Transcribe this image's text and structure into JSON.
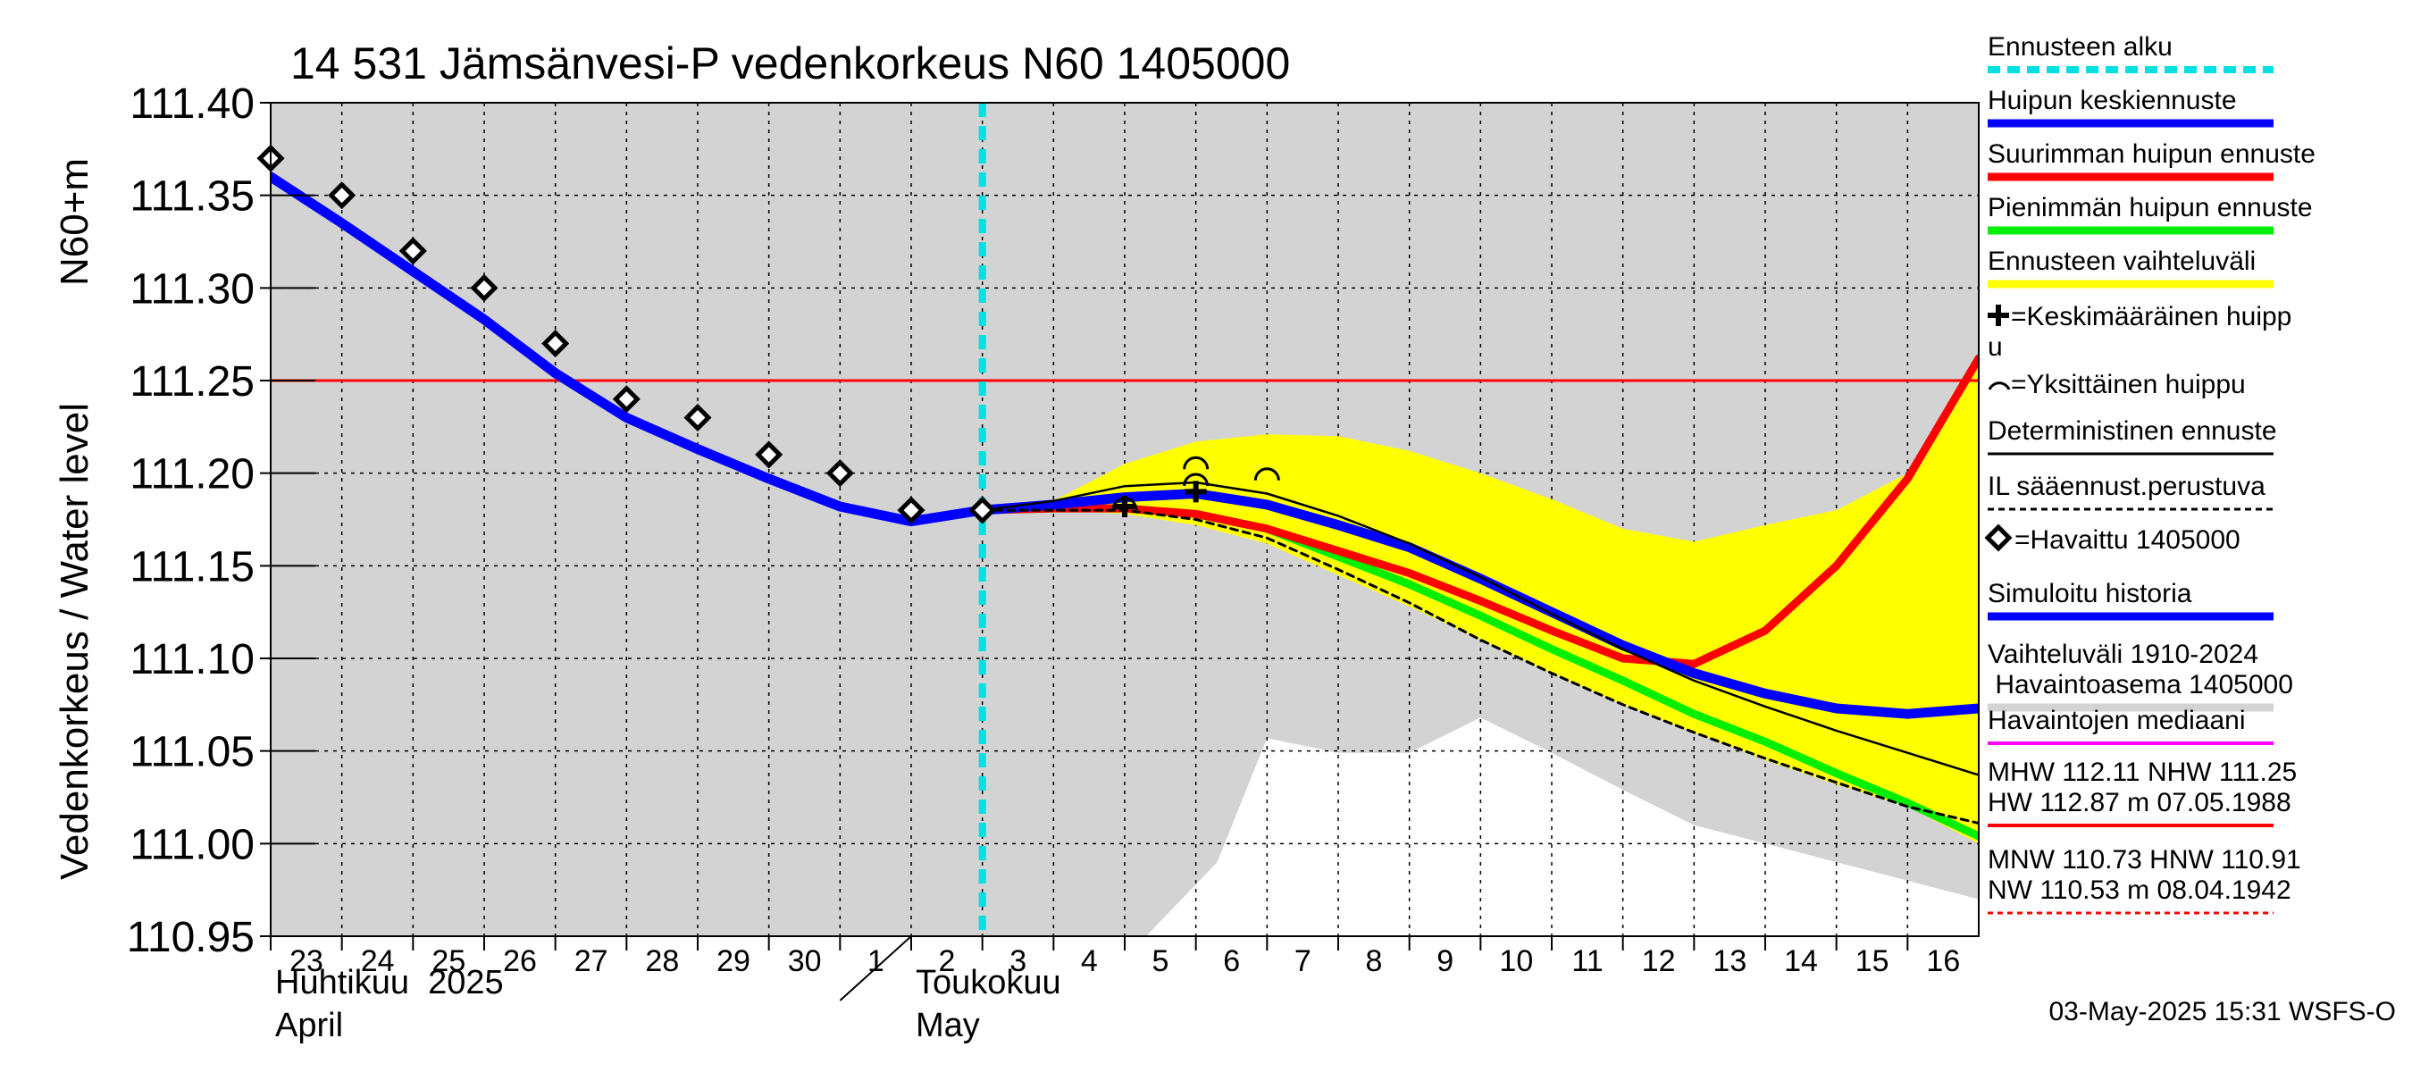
{
  "chart_data": {
    "type": "line",
    "title": "14 531 Jämsänvesi-P vedenkorkeus N60 1405000",
    "ylabel_line1": "N60+m",
    "ylabel_line2": "Vedenkorkeus / Water level",
    "ylim": [
      110.95,
      111.4
    ],
    "yticks": [
      111.4,
      111.35,
      111.3,
      111.25,
      111.2,
      111.15,
      111.1,
      111.05,
      111.0,
      110.95
    ],
    "ytick_labels": [
      "111.40",
      "111.35",
      "111.30",
      "111.25",
      "111.20",
      "111.15",
      "111.10",
      "111.05",
      "111.00",
      "110.95"
    ],
    "x_day_range": [
      0,
      24
    ],
    "x_labels": [
      {
        "day": 0,
        "label": "23"
      },
      {
        "day": 1,
        "label": "24"
      },
      {
        "day": 2,
        "label": "25"
      },
      {
        "day": 3,
        "label": "26"
      },
      {
        "day": 4,
        "label": "27"
      },
      {
        "day": 5,
        "label": "28"
      },
      {
        "day": 6,
        "label": "29"
      },
      {
        "day": 7,
        "label": "30"
      },
      {
        "day": 8,
        "label": "1"
      },
      {
        "day": 9,
        "label": "2"
      },
      {
        "day": 10,
        "label": "3"
      },
      {
        "day": 11,
        "label": "4"
      },
      {
        "day": 12,
        "label": "5"
      },
      {
        "day": 13,
        "label": "6"
      },
      {
        "day": 14,
        "label": "7"
      },
      {
        "day": 15,
        "label": "8"
      },
      {
        "day": 16,
        "label": "9"
      },
      {
        "day": 17,
        "label": "10"
      },
      {
        "day": 18,
        "label": "11"
      },
      {
        "day": 19,
        "label": "12"
      },
      {
        "day": 20,
        "label": "13"
      },
      {
        "day": 21,
        "label": "14"
      },
      {
        "day": 22,
        "label": "15"
      },
      {
        "day": 23,
        "label": "16"
      }
    ],
    "months": [
      {
        "day": 0,
        "fi": "Huhtikuu  2025",
        "en": "April"
      },
      {
        "day": 9,
        "fi": "Toukokuu",
        "en": "May"
      }
    ],
    "forecast_start_day": 10,
    "hw_reference": 111.25,
    "historical_range": {
      "upper": [
        [
          0,
          111.4
        ],
        [
          24,
          111.4
        ]
      ],
      "lower": [
        [
          12.3,
          110.95
        ],
        [
          13.3,
          110.99
        ],
        [
          14,
          111.057
        ],
        [
          15,
          111.049
        ],
        [
          16,
          111.049
        ],
        [
          17,
          111.068
        ],
        [
          18,
          111.049
        ],
        [
          19,
          111.029
        ],
        [
          20,
          111.01
        ],
        [
          21,
          111.0
        ],
        [
          22,
          110.99
        ],
        [
          23,
          110.98
        ],
        [
          24,
          110.97
        ]
      ]
    },
    "forecast_range": {
      "upper": [
        [
          10,
          111.18
        ],
        [
          11,
          111.185
        ],
        [
          12,
          111.205
        ],
        [
          13,
          111.217
        ],
        [
          14,
          111.221
        ],
        [
          15,
          111.22
        ],
        [
          16,
          111.212
        ],
        [
          17,
          111.2
        ],
        [
          18,
          111.186
        ],
        [
          19,
          111.17
        ],
        [
          20,
          111.163
        ],
        [
          21,
          111.172
        ],
        [
          22,
          111.18
        ],
        [
          23,
          111.2
        ],
        [
          24,
          111.262
        ]
      ],
      "lower": [
        [
          10,
          111.18
        ],
        [
          11,
          111.18
        ],
        [
          12,
          111.178
        ],
        [
          13,
          111.172
        ],
        [
          14,
          111.162
        ],
        [
          15,
          111.145
        ],
        [
          16,
          111.128
        ],
        [
          17,
          111.11
        ],
        [
          18,
          111.092
        ],
        [
          19,
          111.075
        ],
        [
          20,
          111.06
        ],
        [
          21,
          111.045
        ],
        [
          22,
          111.032
        ],
        [
          23,
          111.02
        ],
        [
          24,
          111.0
        ]
      ]
    },
    "series": [
      {
        "name": "Simuloitu historia",
        "color": "#0000ff",
        "points": [
          [
            0,
            111.36
          ],
          [
            1,
            111.335
          ],
          [
            2,
            111.309
          ],
          [
            3,
            111.283
          ],
          [
            4,
            111.254
          ],
          [
            5,
            111.23
          ],
          [
            6,
            111.213
          ],
          [
            7,
            111.197
          ],
          [
            8,
            111.182
          ],
          [
            9,
            111.174
          ],
          [
            10,
            111.18
          ]
        ]
      },
      {
        "name": "Huipun keskiennuste",
        "color": "#0000ff",
        "points": [
          [
            10,
            111.18
          ],
          [
            11,
            111.183
          ],
          [
            12,
            111.187
          ],
          [
            13,
            111.189
          ],
          [
            14,
            111.183
          ],
          [
            15,
            111.172
          ],
          [
            16,
            111.16
          ],
          [
            17,
            111.143
          ],
          [
            18,
            111.125
          ],
          [
            19,
            111.107
          ],
          [
            20,
            111.092
          ],
          [
            21,
            111.081
          ],
          [
            22,
            111.073
          ],
          [
            23,
            111.07
          ],
          [
            24,
            111.073
          ]
        ]
      },
      {
        "name": "Suurimman huipun ennuste",
        "color": "#ff0000",
        "points": [
          [
            10,
            111.18
          ],
          [
            11,
            111.181
          ],
          [
            12,
            111.181
          ],
          [
            13,
            111.178
          ],
          [
            14,
            111.17
          ],
          [
            15,
            111.158
          ],
          [
            16,
            111.146
          ],
          [
            17,
            111.131
          ],
          [
            18,
            111.115
          ],
          [
            19,
            111.1
          ],
          [
            20,
            111.097
          ],
          [
            21,
            111.115
          ],
          [
            22,
            111.15
          ],
          [
            23,
            111.197
          ],
          [
            24,
            111.262
          ]
        ]
      },
      {
        "name": "Pienimmän huipun ennuste",
        "color": "#00ee00",
        "points": [
          [
            10,
            111.18
          ],
          [
            11,
            111.181
          ],
          [
            12,
            111.181
          ],
          [
            13,
            111.178
          ],
          [
            14,
            111.17
          ],
          [
            15,
            111.155
          ],
          [
            16,
            111.14
          ],
          [
            17,
            111.123
          ],
          [
            18,
            111.105
          ],
          [
            19,
            111.088
          ],
          [
            20,
            111.07
          ],
          [
            21,
            111.055
          ],
          [
            22,
            111.038
          ],
          [
            23,
            111.022
          ],
          [
            24,
            111.004
          ]
        ]
      },
      {
        "name": "Deterministinen ennuste",
        "color": "#000000",
        "points": [
          [
            10,
            111.18
          ],
          [
            11,
            111.185
          ],
          [
            12,
            111.193
          ],
          [
            13,
            111.195
          ],
          [
            14,
            111.189
          ],
          [
            15,
            111.177
          ],
          [
            16,
            111.162
          ],
          [
            17,
            111.144
          ],
          [
            18,
            111.124
          ],
          [
            19,
            111.105
          ],
          [
            20,
            111.088
          ],
          [
            21,
            111.074
          ],
          [
            22,
            111.061
          ],
          [
            23,
            111.049
          ],
          [
            24,
            111.037
          ]
        ]
      },
      {
        "name": "IL sääennust.perustuva",
        "color": "#000000",
        "points": [
          [
            10,
            111.18
          ],
          [
            11,
            111.18
          ],
          [
            12,
            111.18
          ],
          [
            13,
            111.175
          ],
          [
            14,
            111.165
          ],
          [
            15,
            111.148
          ],
          [
            16,
            111.13
          ],
          [
            17,
            111.11
          ],
          [
            18,
            111.092
          ],
          [
            19,
            111.075
          ],
          [
            20,
            111.06
          ],
          [
            21,
            111.046
          ],
          [
            22,
            111.033
          ],
          [
            23,
            111.02
          ],
          [
            24,
            111.011
          ]
        ]
      }
    ],
    "observed": [
      [
        0,
        111.37
      ],
      [
        1,
        111.35
      ],
      [
        2,
        111.32
      ],
      [
        3,
        111.3
      ],
      [
        4,
        111.27
      ],
      [
        5,
        111.24
      ],
      [
        6,
        111.23
      ],
      [
        7,
        111.21
      ],
      [
        8,
        111.2
      ],
      [
        9,
        111.18
      ],
      [
        10,
        111.18
      ]
    ],
    "mean_peaks": [
      [
        12,
        111.182
      ],
      [
        13,
        111.19
      ]
    ],
    "single_peaks": [
      [
        12,
        111.183
      ],
      [
        13,
        111.196
      ],
      [
        13,
        111.205
      ],
      [
        14,
        111.199
      ]
    ],
    "legend": [
      {
        "label": "Ennusteen alku",
        "color": "#00e0e0",
        "style": "dashed-thick"
      },
      {
        "label": "Huipun keskiennuste",
        "color": "#0000ff",
        "style": "thick"
      },
      {
        "label": "Suurimman huipun ennuste",
        "color": "#ff0000",
        "style": "thick"
      },
      {
        "label": "Pienimmän huipun ennuste",
        "color": "#00ee00",
        "style": "thick"
      },
      {
        "label": "Ennusteen vaihteluväli",
        "color": "#ffff00",
        "style": "thick"
      },
      {
        "label": "=Keskimääräinen huipp",
        "label2": "u",
        "color": "#000000",
        "style": "none",
        "marker": "plus"
      },
      {
        "label": "=Yksittäinen huippu",
        "color": "#000000",
        "style": "none",
        "marker": "arc"
      },
      {
        "label": "Deterministinen ennuste",
        "color": "#000000",
        "style": "thin"
      },
      {
        "label": "IL sääennust.perustuva",
        "color": "#000000",
        "style": "dashed-thin"
      },
      {
        "label": "=Havaittu 1405000",
        "color": "#000000",
        "style": "none",
        "marker": "diamond"
      },
      {
        "label": "Simuloitu historia",
        "color": "#0000ff",
        "style": "thick"
      },
      {
        "label": "Vaihteluväli 1910-2024",
        "label2": " Havaintoasema 1405000",
        "color": "#d3d3d3",
        "style": "thick"
      },
      {
        "label": "Havaintojen mediaani",
        "color": "#ff00ff",
        "style": "medium"
      },
      {
        "label": "MHW 112.11 NHW 111.25",
        "label2": "HW 112.87 m 07.05.1988",
        "color": "#ff0000",
        "style": "medium"
      },
      {
        "label": "MNW 110.73 HNW 110.91",
        "label2": "NW 110.53 m 08.04.1942",
        "color": "#ff0000",
        "style": "dotted"
      }
    ]
  },
  "footer": "03-May-2025 15:31 WSFS-O"
}
